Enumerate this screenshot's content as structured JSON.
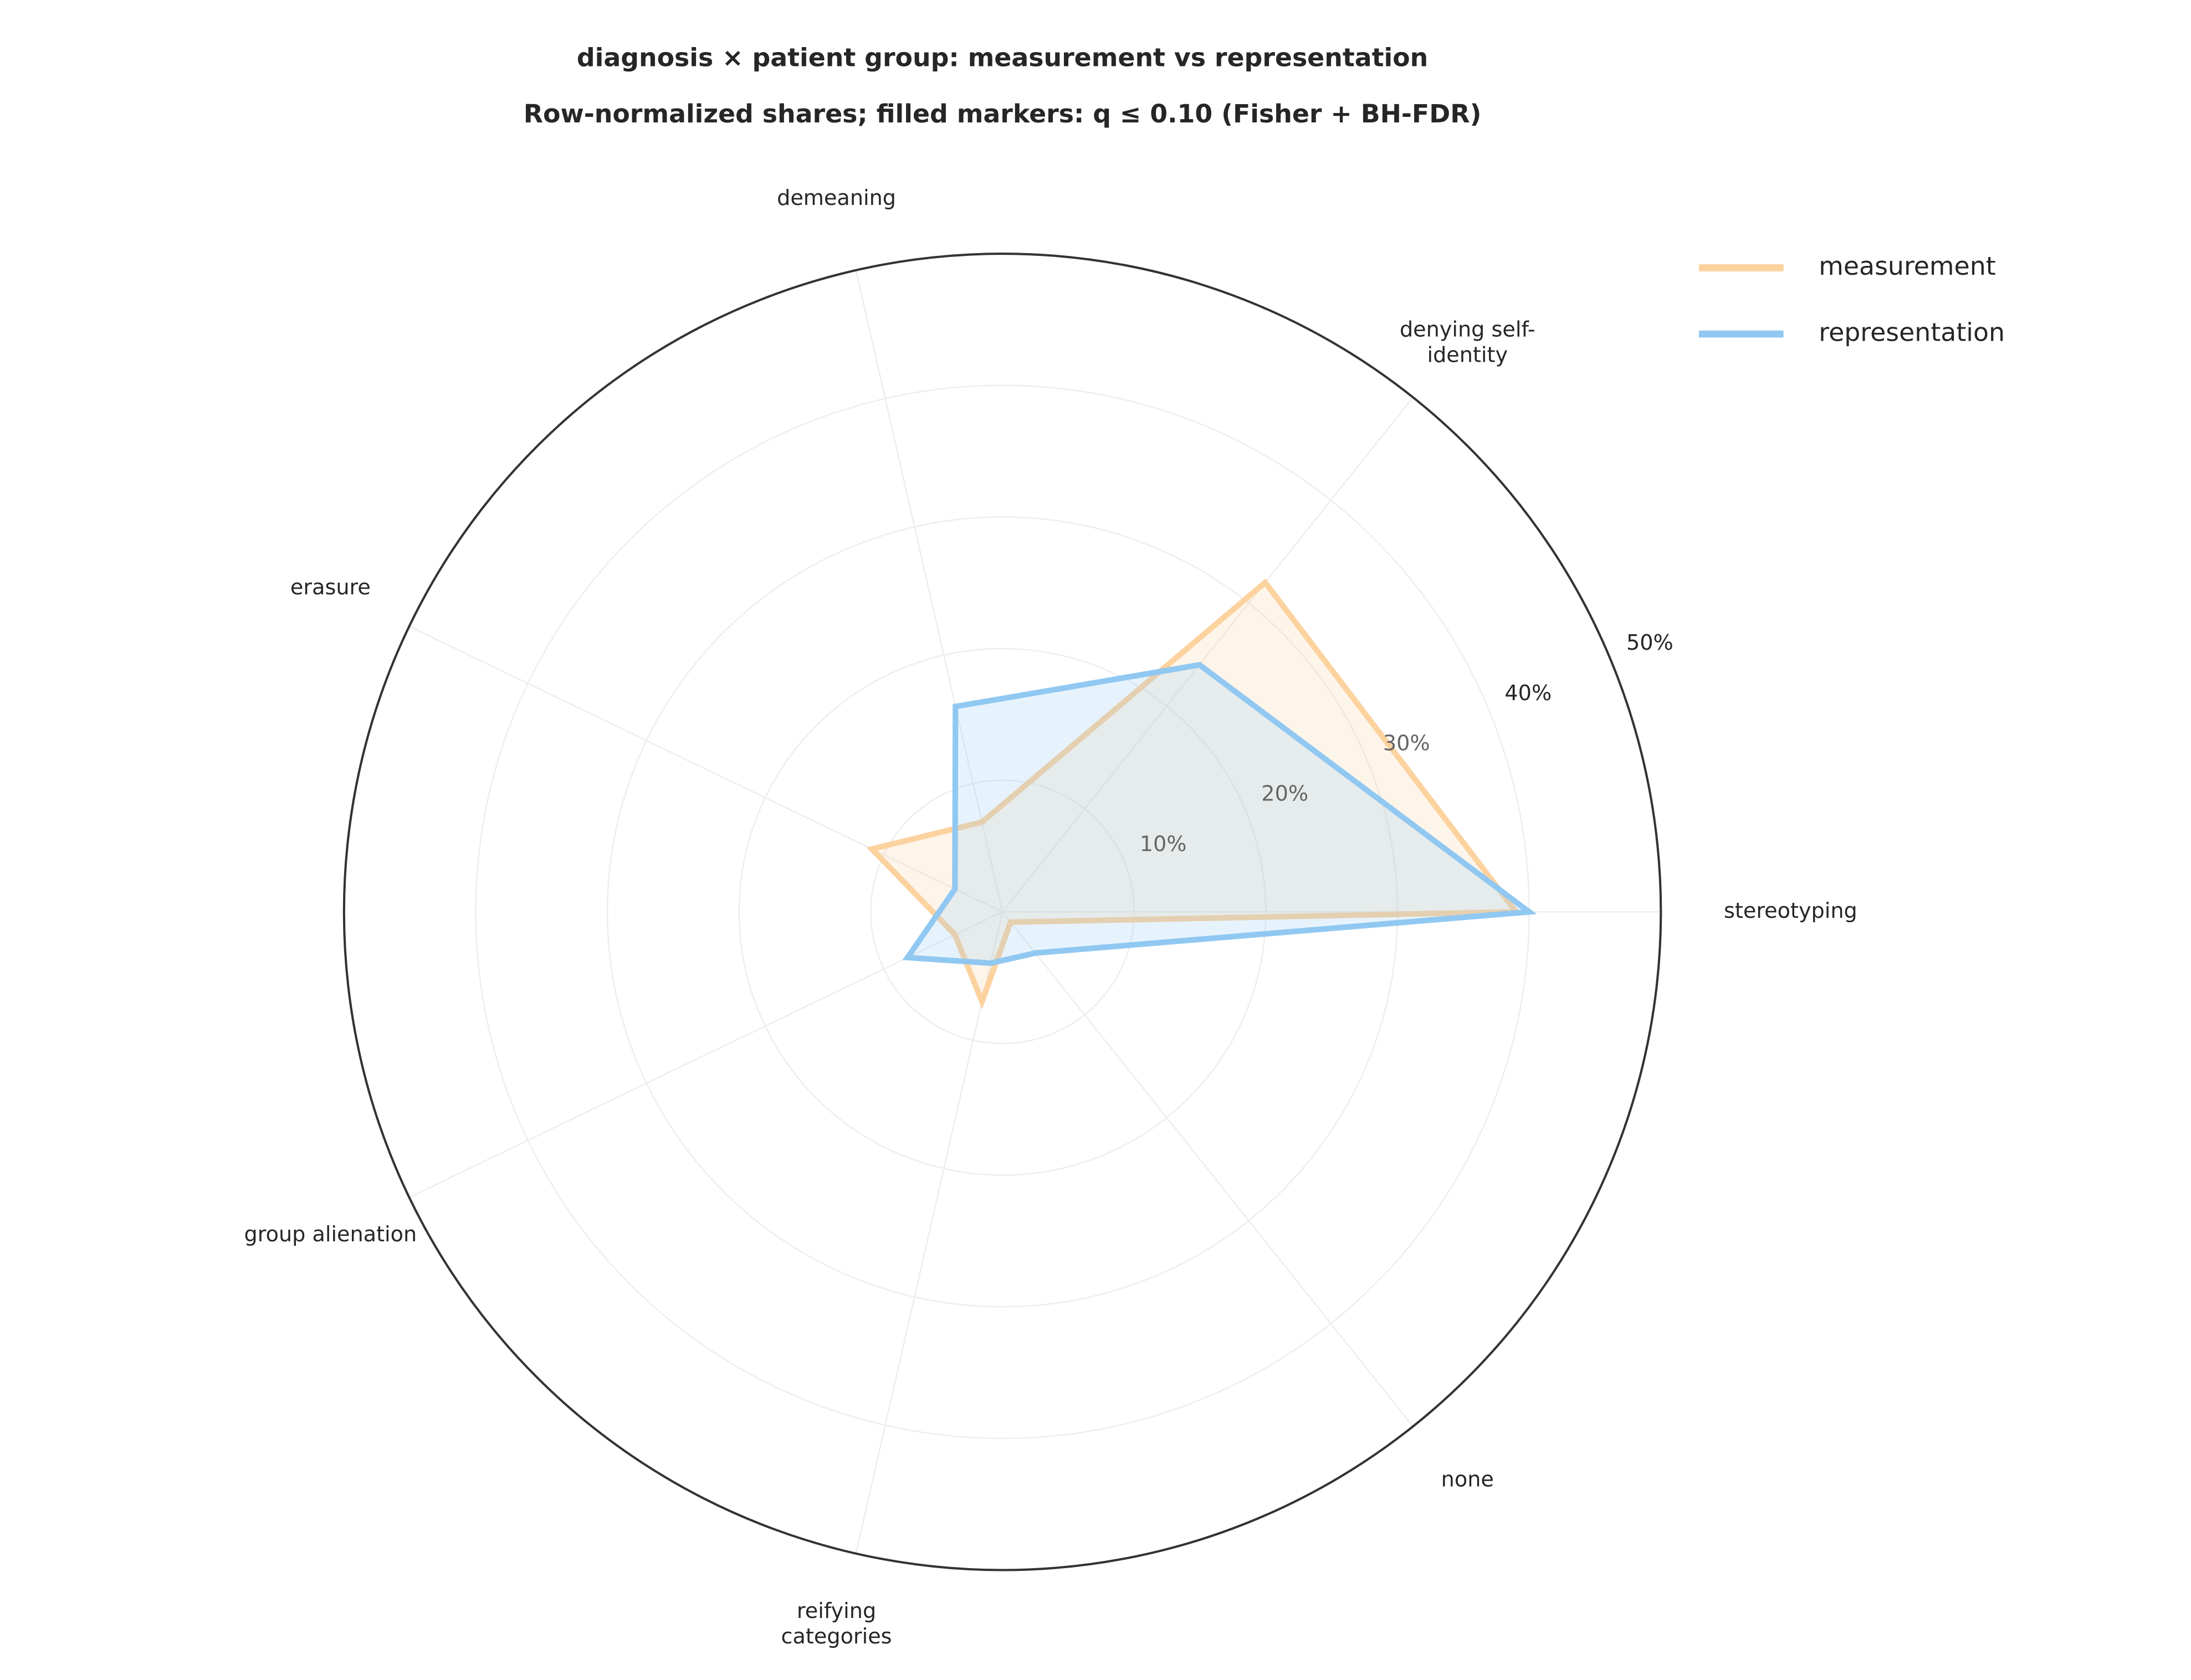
{
  "chart_data": {
    "type": "radar",
    "title": "diagnosis × patient group: measurement vs representation",
    "subtitle": "Row-normalized shares; filled markers: q ≤ 0.10 (Fisher + BH-FDR)",
    "categories": [
      "stereotyping",
      "denying self-\nidentity",
      "demeaning",
      "erasure",
      "group alienation",
      "reifying\ncategories",
      "none"
    ],
    "series": [
      {
        "name": "measurement",
        "color": "#fcd29f",
        "values": [
          39,
          32,
          7,
          11,
          4,
          7,
          1
        ]
      },
      {
        "name": "representation",
        "color": "#90c8f2",
        "values": [
          40,
          24,
          16,
          4,
          8,
          4,
          4
        ]
      }
    ],
    "rlim": [
      0,
      50
    ],
    "rticks": [
      {
        "value": 10,
        "label": "10%"
      },
      {
        "value": 20,
        "label": "20%"
      },
      {
        "value": 30,
        "label": "30%"
      },
      {
        "value": 40,
        "label": "40%"
      },
      {
        "value": 50,
        "label": "50%"
      }
    ],
    "grid": true,
    "legend": "upper right"
  }
}
